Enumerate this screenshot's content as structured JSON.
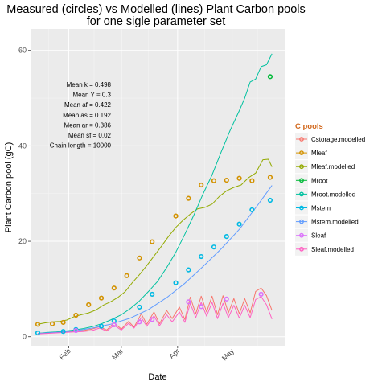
{
  "chart_data": {
    "type": "line",
    "title": [
      "Measured (circles) vs Modelled (lines) Plant Carbon pools",
      "for one sigle parameter set"
    ],
    "xlabel": "Date",
    "ylabel": "Plant Carbon pool (gC)",
    "x_ticks": [
      {
        "label": "Feb",
        "date": "2000-02-01"
      },
      {
        "label": "Mar",
        "date": "2000-03-01"
      },
      {
        "label": "Apr",
        "date": "2000-04-01"
      },
      {
        "label": "May",
        "date": "2000-05-01"
      }
    ],
    "y_ticks": [
      0,
      20,
      40,
      60
    ],
    "xlim": [
      "2000-01-11",
      "2000-05-30"
    ],
    "ylim": [
      -1.9,
      64.5
    ],
    "grid": true,
    "legend": {
      "title": "C pools",
      "position": "right",
      "title_color": "#D2691E",
      "entries": [
        {
          "label": "Cstorage.modelled",
          "color": "#F8766D"
        },
        {
          "label": "Mleaf",
          "color": "#D39200"
        },
        {
          "label": "Mleaf.modelled",
          "color": "#93AA00"
        },
        {
          "label": "Mroot",
          "color": "#00BA38"
        },
        {
          "label": "Mroot.modelled",
          "color": "#00C19F"
        },
        {
          "label": "Mstem",
          "color": "#00B9E3"
        },
        {
          "label": "Mstem.modelled",
          "color": "#619CFF"
        },
        {
          "label": "Sleaf",
          "color": "#DB72FB"
        },
        {
          "label": "Sleaf.modelled",
          "color": "#FF61C3"
        }
      ]
    },
    "annotations": [
      "Mean k =  0.498",
      "Mean Y =  0.3",
      "Mean af =  0.422",
      "Mean as =  0.192",
      "Mean ar =  0.386",
      "Mean sf =  0.02",
      "Chain length =  10000"
    ],
    "series": [
      {
        "name": "Mleaf",
        "kind": "points",
        "color": "#D39200",
        "points": [
          [
            "2000-01-15",
            2.6
          ],
          [
            "2000-01-23",
            2.7
          ],
          [
            "2000-01-29",
            3.0
          ],
          [
            "2000-02-05",
            4.5
          ],
          [
            "2000-02-12",
            6.7
          ],
          [
            "2000-02-19",
            8.1
          ],
          [
            "2000-02-26",
            10.2
          ],
          [
            "2000-03-04",
            12.8
          ],
          [
            "2000-03-11",
            16.5
          ],
          [
            "2000-03-18",
            19.9
          ],
          [
            "2000-03-31",
            25.3
          ],
          [
            "2000-04-07",
            29.0
          ],
          [
            "2000-04-14",
            31.8
          ],
          [
            "2000-04-21",
            32.7
          ],
          [
            "2000-04-28",
            32.8
          ],
          [
            "2000-05-05",
            33.2
          ],
          [
            "2000-05-12",
            32.7
          ],
          [
            "2000-05-22",
            33.4
          ]
        ]
      },
      {
        "name": "Mroot",
        "kind": "points",
        "color": "#00BA38",
        "points": [
          [
            "2000-05-22",
            54.5
          ]
        ]
      },
      {
        "name": "Mstem",
        "kind": "points",
        "color": "#00B9E3",
        "points": [
          [
            "2000-01-15",
            0.8
          ],
          [
            "2000-01-29",
            1.1
          ],
          [
            "2000-02-05",
            1.5
          ],
          [
            "2000-02-19",
            2.2
          ],
          [
            "2000-02-26",
            3.3
          ],
          [
            "2000-03-11",
            6.2
          ],
          [
            "2000-03-18",
            8.9
          ],
          [
            "2000-03-31",
            11.3
          ],
          [
            "2000-04-07",
            14.0
          ],
          [
            "2000-04-14",
            16.8
          ],
          [
            "2000-04-21",
            18.8
          ],
          [
            "2000-04-28",
            21.0
          ],
          [
            "2000-05-05",
            23.6
          ],
          [
            "2000-05-12",
            26.6
          ],
          [
            "2000-05-22",
            28.6
          ]
        ]
      },
      {
        "name": "Sleaf",
        "kind": "points",
        "color": "#DB72FB",
        "points": [
          [
            "2000-02-05",
            1.3
          ],
          [
            "2000-02-26",
            2.5
          ],
          [
            "2000-03-11",
            3.1
          ],
          [
            "2000-03-18",
            3.6
          ],
          [
            "2000-04-07",
            7.3
          ],
          [
            "2000-04-14",
            6.3
          ],
          [
            "2000-04-28",
            7.9
          ],
          [
            "2000-05-17",
            8.9
          ]
        ]
      },
      {
        "name": "Cstorage.modelled",
        "kind": "line",
        "color": "#F8766D",
        "points": [
          [
            "2000-01-15",
            0.7
          ],
          [
            "2000-01-20",
            0.8
          ],
          [
            "2000-01-25",
            0.9
          ],
          [
            "2000-01-30",
            1.0
          ],
          [
            "2000-02-04",
            1.1
          ],
          [
            "2000-02-09",
            1.3
          ],
          [
            "2000-02-14",
            1.6
          ],
          [
            "2000-02-18",
            2.1
          ],
          [
            "2000-02-22",
            1.4
          ],
          [
            "2000-02-26",
            2.9
          ],
          [
            "2000-03-01",
            1.6
          ],
          [
            "2000-03-05",
            3.2
          ],
          [
            "2000-03-08",
            2.0
          ],
          [
            "2000-03-12",
            4.8
          ],
          [
            "2000-03-15",
            2.6
          ],
          [
            "2000-03-19",
            5.2
          ],
          [
            "2000-03-22",
            2.7
          ],
          [
            "2000-03-26",
            5.5
          ],
          [
            "2000-03-29",
            3.8
          ],
          [
            "2000-04-02",
            6.2
          ],
          [
            "2000-04-05",
            3.6
          ],
          [
            "2000-04-08",
            8.3
          ],
          [
            "2000-04-11",
            4.8
          ],
          [
            "2000-04-14",
            8.5
          ],
          [
            "2000-04-17",
            5.2
          ],
          [
            "2000-04-20",
            8.5
          ],
          [
            "2000-04-23",
            4.6
          ],
          [
            "2000-04-26",
            8.6
          ],
          [
            "2000-04-29",
            5.0
          ],
          [
            "2000-05-02",
            8.0
          ],
          [
            "2000-05-05",
            4.8
          ],
          [
            "2000-05-08",
            8.0
          ],
          [
            "2000-05-11",
            5.0
          ],
          [
            "2000-05-14",
            9.5
          ],
          [
            "2000-05-17",
            10.2
          ],
          [
            "2000-05-20",
            8.6
          ],
          [
            "2000-05-23",
            5.5
          ]
        ]
      },
      {
        "name": "Mleaf.modelled",
        "kind": "line",
        "color": "#93AA00",
        "points": [
          [
            "2000-01-15",
            2.6
          ],
          [
            "2000-01-19",
            2.9
          ],
          [
            "2000-01-23",
            3.1
          ],
          [
            "2000-01-27",
            3.2
          ],
          [
            "2000-01-31",
            3.5
          ],
          [
            "2000-02-04",
            4.2
          ],
          [
            "2000-02-08",
            4.6
          ],
          [
            "2000-02-12",
            5.0
          ],
          [
            "2000-02-16",
            5.6
          ],
          [
            "2000-02-20",
            6.6
          ],
          [
            "2000-02-24",
            7.3
          ],
          [
            "2000-02-28",
            8.2
          ],
          [
            "2000-03-03",
            9.4
          ],
          [
            "2000-03-07",
            11.3
          ],
          [
            "2000-03-11",
            13.0
          ],
          [
            "2000-03-15",
            14.9
          ],
          [
            "2000-03-19",
            16.9
          ],
          [
            "2000-03-23",
            18.9
          ],
          [
            "2000-03-27",
            21.0
          ],
          [
            "2000-03-31",
            22.9
          ],
          [
            "2000-04-04",
            24.4
          ],
          [
            "2000-04-08",
            25.7
          ],
          [
            "2000-04-12",
            26.8
          ],
          [
            "2000-04-16",
            27.1
          ],
          [
            "2000-04-20",
            27.8
          ],
          [
            "2000-04-24",
            29.4
          ],
          [
            "2000-04-28",
            30.6
          ],
          [
            "2000-05-02",
            31.3
          ],
          [
            "2000-05-06",
            31.8
          ],
          [
            "2000-05-10",
            33.3
          ],
          [
            "2000-05-14",
            34.3
          ],
          [
            "2000-05-18",
            37.1
          ],
          [
            "2000-05-21",
            37.2
          ],
          [
            "2000-05-23",
            35.6
          ]
        ]
      },
      {
        "name": "Mroot.modelled",
        "kind": "line",
        "color": "#00C19F",
        "points": [
          [
            "2000-01-15",
            0.7
          ],
          [
            "2000-01-20",
            0.9
          ],
          [
            "2000-01-25",
            1.0
          ],
          [
            "2000-01-30",
            1.2
          ],
          [
            "2000-02-04",
            1.4
          ],
          [
            "2000-02-09",
            1.7
          ],
          [
            "2000-02-14",
            2.1
          ],
          [
            "2000-02-19",
            2.7
          ],
          [
            "2000-02-24",
            3.5
          ],
          [
            "2000-03-01",
            4.6
          ],
          [
            "2000-03-06",
            5.9
          ],
          [
            "2000-03-11",
            7.5
          ],
          [
            "2000-03-16",
            9.5
          ],
          [
            "2000-03-21",
            11.6
          ],
          [
            "2000-03-26",
            14.5
          ],
          [
            "2000-03-31",
            17.7
          ],
          [
            "2000-04-05",
            21.5
          ],
          [
            "2000-04-10",
            25.5
          ],
          [
            "2000-04-15",
            29.9
          ],
          [
            "2000-04-20",
            33.9
          ],
          [
            "2000-04-25",
            38.7
          ],
          [
            "2000-04-30",
            43.3
          ],
          [
            "2000-05-05",
            47.4
          ],
          [
            "2000-05-08",
            50.0
          ],
          [
            "2000-05-11",
            53.4
          ],
          [
            "2000-05-14",
            54.0
          ],
          [
            "2000-05-17",
            56.6
          ],
          [
            "2000-05-20",
            57.0
          ],
          [
            "2000-05-23",
            59.3
          ]
        ]
      },
      {
        "name": "Mstem.modelled",
        "kind": "line",
        "color": "#619CFF",
        "points": [
          [
            "2000-01-15",
            0.7
          ],
          [
            "2000-01-25",
            0.9
          ],
          [
            "2000-02-04",
            1.2
          ],
          [
            "2000-02-14",
            1.8
          ],
          [
            "2000-02-24",
            2.6
          ],
          [
            "2000-03-06",
            3.9
          ],
          [
            "2000-03-16",
            5.7
          ],
          [
            "2000-03-26",
            8.2
          ],
          [
            "2000-04-05",
            11.2
          ],
          [
            "2000-04-15",
            14.7
          ],
          [
            "2000-04-25",
            18.4
          ],
          [
            "2000-05-05",
            22.5
          ],
          [
            "2000-05-15",
            27.5
          ],
          [
            "2000-05-23",
            31.7
          ]
        ]
      },
      {
        "name": "Sleaf.modelled",
        "kind": "line",
        "color": "#FF61C3",
        "points": [
          [
            "2000-01-15",
            0.6
          ],
          [
            "2000-01-20",
            0.7
          ],
          [
            "2000-01-25",
            0.8
          ],
          [
            "2000-01-30",
            0.9
          ],
          [
            "2000-02-04",
            1.0
          ],
          [
            "2000-02-09",
            1.1
          ],
          [
            "2000-02-14",
            1.3
          ],
          [
            "2000-02-18",
            1.8
          ],
          [
            "2000-02-22",
            1.2
          ],
          [
            "2000-02-26",
            2.4
          ],
          [
            "2000-03-01",
            1.4
          ],
          [
            "2000-03-05",
            2.8
          ],
          [
            "2000-03-08",
            1.8
          ],
          [
            "2000-03-12",
            4.0
          ],
          [
            "2000-03-15",
            2.2
          ],
          [
            "2000-03-19",
            4.4
          ],
          [
            "2000-03-22",
            2.3
          ],
          [
            "2000-03-26",
            4.6
          ],
          [
            "2000-03-29",
            3.1
          ],
          [
            "2000-04-02",
            5.2
          ],
          [
            "2000-04-05",
            3.0
          ],
          [
            "2000-04-08",
            7.0
          ],
          [
            "2000-04-11",
            4.0
          ],
          [
            "2000-04-14",
            7.2
          ],
          [
            "2000-04-17",
            4.3
          ],
          [
            "2000-04-20",
            7.2
          ],
          [
            "2000-04-23",
            3.8
          ],
          [
            "2000-04-26",
            7.0
          ],
          [
            "2000-04-29",
            4.0
          ],
          [
            "2000-05-02",
            6.6
          ],
          [
            "2000-05-05",
            3.9
          ],
          [
            "2000-05-08",
            6.6
          ],
          [
            "2000-05-11",
            4.0
          ],
          [
            "2000-05-14",
            7.8
          ],
          [
            "2000-05-17",
            8.4
          ],
          [
            "2000-05-20",
            6.7
          ],
          [
            "2000-05-23",
            3.7
          ]
        ]
      }
    ]
  }
}
